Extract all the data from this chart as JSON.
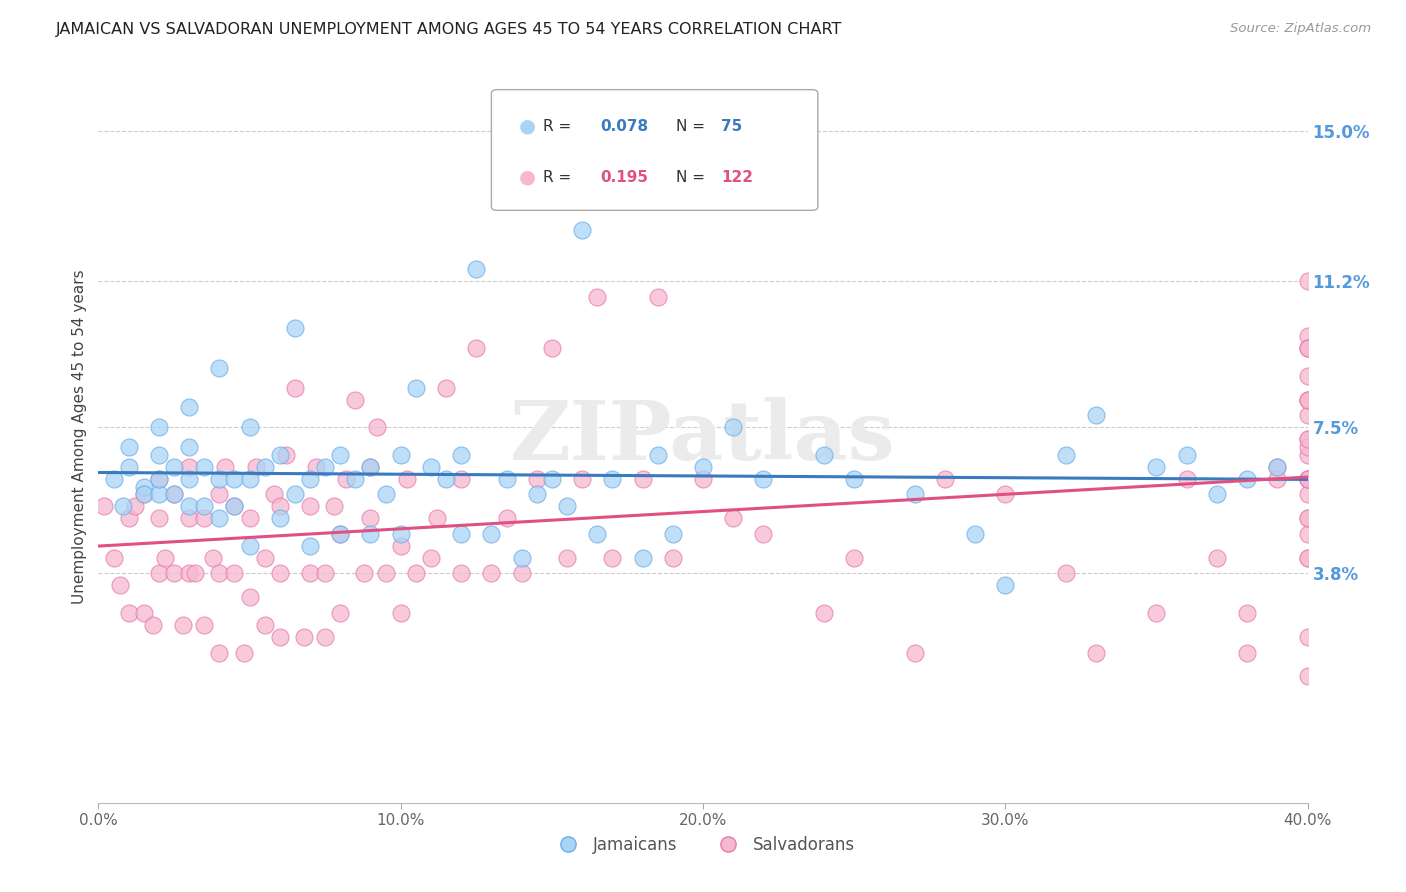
{
  "title": "JAMAICAN VS SALVADORAN UNEMPLOYMENT AMONG AGES 45 TO 54 YEARS CORRELATION CHART",
  "source": "Source: ZipAtlas.com",
  "ylabel": "Unemployment Among Ages 45 to 54 years",
  "xlim": [
    0.0,
    0.4
  ],
  "ylim": [
    -0.02,
    0.165
  ],
  "xtick_labels": [
    "0.0%",
    "10.0%",
    "20.0%",
    "30.0%",
    "40.0%"
  ],
  "xtick_vals": [
    0.0,
    0.1,
    0.2,
    0.3,
    0.4
  ],
  "ytick_labels_right": [
    "15.0%",
    "11.2%",
    "7.5%",
    "3.8%"
  ],
  "ytick_vals_right": [
    0.15,
    0.112,
    0.075,
    0.038
  ],
  "jamaicans_color": "#aad4f5",
  "jamaicans_edge_color": "#6aaee8",
  "salvadorans_color": "#f5b8d0",
  "salvadorans_edge_color": "#e87aa8",
  "jamaicans_line_color": "#3a7abf",
  "salvadorans_line_color": "#e05080",
  "watermark": "ZIPatlas",
  "background_color": "#ffffff",
  "grid_color": "#cccccc",
  "title_color": "#222222",
  "right_tick_color": "#5599dd",
  "legend_r1": "0.078",
  "legend_n1": "75",
  "legend_r2": "0.195",
  "legend_n2": "122",
  "jamaicans_scatter_x": [
    0.005,
    0.008,
    0.01,
    0.01,
    0.015,
    0.015,
    0.02,
    0.02,
    0.02,
    0.02,
    0.025,
    0.025,
    0.03,
    0.03,
    0.03,
    0.03,
    0.035,
    0.035,
    0.04,
    0.04,
    0.04,
    0.045,
    0.045,
    0.05,
    0.05,
    0.05,
    0.055,
    0.06,
    0.06,
    0.065,
    0.065,
    0.07,
    0.07,
    0.075,
    0.08,
    0.08,
    0.085,
    0.09,
    0.09,
    0.095,
    0.1,
    0.1,
    0.105,
    0.11,
    0.115,
    0.12,
    0.12,
    0.125,
    0.13,
    0.135,
    0.14,
    0.145,
    0.15,
    0.155,
    0.16,
    0.165,
    0.17,
    0.18,
    0.185,
    0.19,
    0.2,
    0.21,
    0.22,
    0.24,
    0.25,
    0.27,
    0.29,
    0.3,
    0.32,
    0.33,
    0.35,
    0.36,
    0.37,
    0.38,
    0.39
  ],
  "jamaicans_scatter_y": [
    0.062,
    0.055,
    0.065,
    0.07,
    0.06,
    0.058,
    0.058,
    0.062,
    0.068,
    0.075,
    0.058,
    0.065,
    0.055,
    0.062,
    0.07,
    0.08,
    0.055,
    0.065,
    0.052,
    0.062,
    0.09,
    0.055,
    0.062,
    0.045,
    0.062,
    0.075,
    0.065,
    0.052,
    0.068,
    0.058,
    0.1,
    0.045,
    0.062,
    0.065,
    0.048,
    0.068,
    0.062,
    0.048,
    0.065,
    0.058,
    0.048,
    0.068,
    0.085,
    0.065,
    0.062,
    0.048,
    0.068,
    0.115,
    0.048,
    0.062,
    0.042,
    0.058,
    0.062,
    0.055,
    0.125,
    0.048,
    0.062,
    0.042,
    0.068,
    0.048,
    0.065,
    0.075,
    0.062,
    0.068,
    0.062,
    0.058,
    0.048,
    0.035,
    0.068,
    0.078,
    0.065,
    0.068,
    0.058,
    0.062,
    0.065
  ],
  "salvadorans_scatter_x": [
    0.002,
    0.005,
    0.007,
    0.01,
    0.01,
    0.012,
    0.015,
    0.015,
    0.018,
    0.02,
    0.02,
    0.02,
    0.022,
    0.025,
    0.025,
    0.028,
    0.03,
    0.03,
    0.03,
    0.032,
    0.035,
    0.035,
    0.038,
    0.04,
    0.04,
    0.04,
    0.042,
    0.045,
    0.045,
    0.048,
    0.05,
    0.05,
    0.052,
    0.055,
    0.055,
    0.058,
    0.06,
    0.06,
    0.06,
    0.062,
    0.065,
    0.068,
    0.07,
    0.07,
    0.072,
    0.075,
    0.075,
    0.078,
    0.08,
    0.08,
    0.082,
    0.085,
    0.088,
    0.09,
    0.09,
    0.092,
    0.095,
    0.1,
    0.1,
    0.102,
    0.105,
    0.11,
    0.112,
    0.115,
    0.12,
    0.12,
    0.125,
    0.13,
    0.135,
    0.14,
    0.145,
    0.15,
    0.155,
    0.16,
    0.165,
    0.17,
    0.18,
    0.185,
    0.19,
    0.2,
    0.21,
    0.22,
    0.24,
    0.25,
    0.27,
    0.28,
    0.3,
    0.32,
    0.33,
    0.35,
    0.36,
    0.37,
    0.38,
    0.38,
    0.39,
    0.39,
    0.4,
    0.4,
    0.4,
    0.4,
    0.4,
    0.4,
    0.4,
    0.4,
    0.4,
    0.4,
    0.4,
    0.4,
    0.4,
    0.4,
    0.4,
    0.4,
    0.4,
    0.4,
    0.4,
    0.4,
    0.4,
    0.4,
    0.4,
    0.4,
    0.4,
    0.4
  ],
  "salvadorans_scatter_y": [
    0.055,
    0.042,
    0.035,
    0.028,
    0.052,
    0.055,
    0.028,
    0.058,
    0.025,
    0.038,
    0.052,
    0.062,
    0.042,
    0.038,
    0.058,
    0.025,
    0.038,
    0.052,
    0.065,
    0.038,
    0.052,
    0.025,
    0.042,
    0.018,
    0.038,
    0.058,
    0.065,
    0.038,
    0.055,
    0.018,
    0.032,
    0.052,
    0.065,
    0.025,
    0.042,
    0.058,
    0.022,
    0.038,
    0.055,
    0.068,
    0.085,
    0.022,
    0.038,
    0.055,
    0.065,
    0.022,
    0.038,
    0.055,
    0.028,
    0.048,
    0.062,
    0.082,
    0.038,
    0.052,
    0.065,
    0.075,
    0.038,
    0.028,
    0.045,
    0.062,
    0.038,
    0.042,
    0.052,
    0.085,
    0.038,
    0.062,
    0.095,
    0.038,
    0.052,
    0.038,
    0.062,
    0.095,
    0.042,
    0.062,
    0.108,
    0.042,
    0.062,
    0.108,
    0.042,
    0.062,
    0.052,
    0.048,
    0.028,
    0.042,
    0.018,
    0.062,
    0.058,
    0.038,
    0.018,
    0.028,
    0.062,
    0.042,
    0.018,
    0.028,
    0.065,
    0.062,
    0.012,
    0.042,
    0.062,
    0.082,
    0.048,
    0.058,
    0.068,
    0.078,
    0.088,
    0.098,
    0.022,
    0.062,
    0.072,
    0.082,
    0.095,
    0.052,
    0.062,
    0.095,
    0.07,
    0.042,
    0.052,
    0.062,
    0.072,
    0.082,
    0.095,
    0.112
  ]
}
